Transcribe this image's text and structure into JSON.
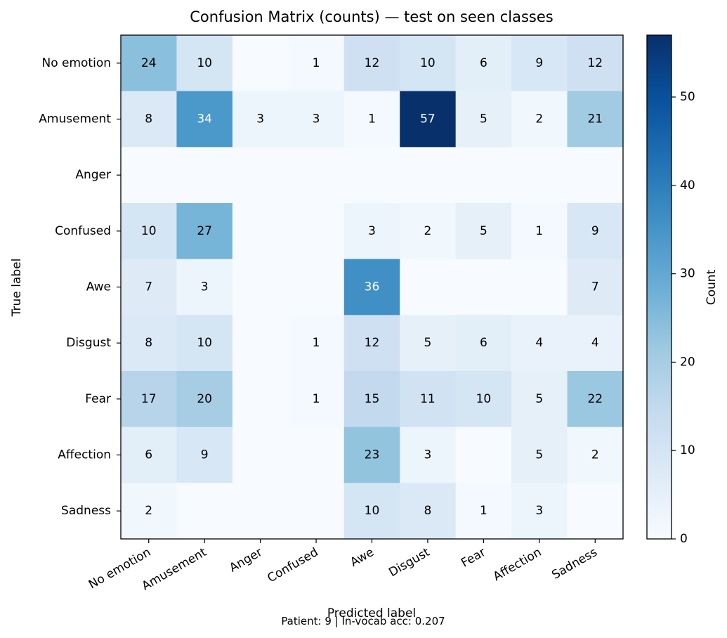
{
  "chart_data": {
    "type": "heatmap",
    "title": "Confusion Matrix (counts) — test on seen classes",
    "xlabel": "Predicted label",
    "ylabel": "True label",
    "x_categories": [
      "No emotion",
      "Amusement",
      "Anger",
      "Confused",
      "Awe",
      "Disgust",
      "Fear",
      "Affection",
      "Sadness"
    ],
    "y_categories": [
      "No emotion",
      "Amusement",
      "Anger",
      "Confused",
      "Awe",
      "Disgust",
      "Fear",
      "Affection",
      "Sadness"
    ],
    "values": [
      [
        24,
        10,
        0,
        1,
        12,
        10,
        6,
        9,
        12
      ],
      [
        8,
        34,
        3,
        3,
        1,
        57,
        5,
        2,
        21
      ],
      [
        0,
        0,
        0,
        0,
        0,
        0,
        0,
        0,
        0
      ],
      [
        10,
        27,
        0,
        0,
        3,
        2,
        5,
        1,
        9
      ],
      [
        7,
        3,
        0,
        0,
        36,
        0,
        0,
        0,
        7
      ],
      [
        8,
        10,
        0,
        1,
        12,
        5,
        6,
        4,
        4
      ],
      [
        17,
        20,
        0,
        1,
        15,
        11,
        10,
        5,
        22
      ],
      [
        6,
        9,
        0,
        0,
        23,
        3,
        0,
        5,
        2
      ],
      [
        2,
        0,
        0,
        0,
        10,
        8,
        1,
        3,
        0
      ]
    ],
    "hide_zero_labels": true,
    "colormap": "Blues",
    "color_range": [
      0,
      57
    ],
    "colorbar": {
      "label": "Count",
      "ticks": [
        0,
        10,
        20,
        30,
        40,
        50
      ]
    },
    "grid": false
  },
  "footer": {
    "text": "Patient: 9 | In-vocab acc: 0.207"
  }
}
